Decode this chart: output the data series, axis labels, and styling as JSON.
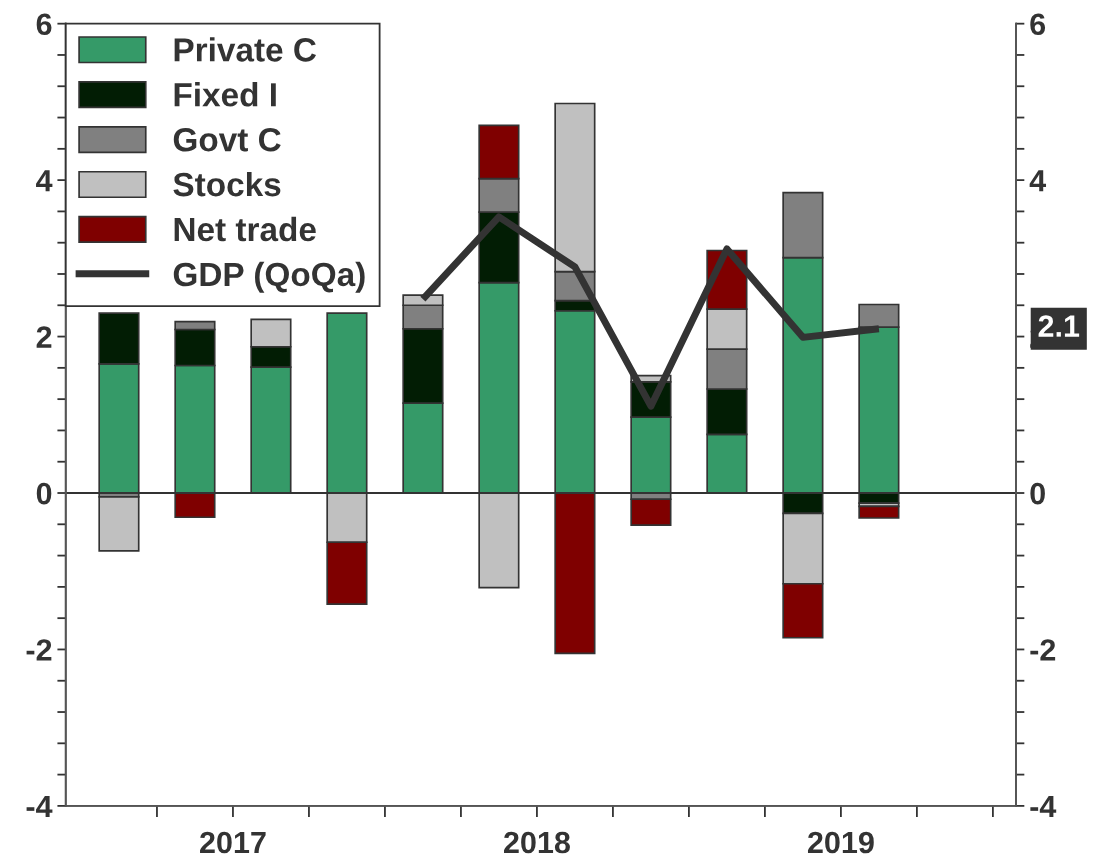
{
  "chart_data": {
    "type": "bar",
    "stacked": true,
    "x": [
      2017.125,
      2017.375,
      2017.625,
      2017.875,
      2018.125,
      2018.375,
      2018.625,
      2018.875,
      2019.125,
      2019.375,
      2019.625
    ],
    "series": [
      {
        "name": "Private C",
        "color": "#359a68",
        "values": [
          1.65,
          1.63,
          1.61,
          2.3,
          1.15,
          2.69,
          2.33,
          0.97,
          0.75,
          3.01,
          2.12
        ]
      },
      {
        "name": "Fixed I",
        "color": "#021d04",
        "values": [
          0.65,
          0.46,
          0.26,
          null,
          0.95,
          0.9,
          0.13,
          0.45,
          0.58,
          -0.26,
          -0.13
        ]
      },
      {
        "name": "Govt C",
        "color": "#808080",
        "values": [
          -0.05,
          0.1,
          null,
          null,
          0.3,
          0.43,
          0.37,
          -0.08,
          0.51,
          0.83,
          0.29
        ]
      },
      {
        "name": "Stocks",
        "color": "#c0c0c0",
        "values": [
          -0.69,
          null,
          0.35,
          -0.63,
          0.13,
          -1.21,
          2.15,
          0.08,
          0.51,
          -0.9,
          -0.04
        ]
      },
      {
        "name": "Net trade",
        "color": "#7f0000",
        "values": [
          null,
          -0.31,
          null,
          -0.79,
          null,
          0.68,
          -2.05,
          -0.33,
          0.75,
          -0.69,
          -0.15
        ]
      },
      {
        "name": "GDP (QoQa)",
        "type": "line",
        "color": "#333333",
        "values": [
          null,
          null,
          null,
          null,
          2.48,
          3.53,
          2.89,
          1.11,
          3.12,
          1.99,
          2.1
        ]
      }
    ],
    "xlim": [
      2016.95,
      2020.076
    ],
    "xticks": [
      {
        "value": 2017.25,
        "label": null
      },
      {
        "value": 2017.5,
        "label": "2017"
      },
      {
        "value": 2017.75,
        "label": null
      },
      {
        "value": 2018,
        "label": null
      },
      {
        "value": 2018.25,
        "label": null
      },
      {
        "value": 2018.5,
        "label": "2018"
      },
      {
        "value": 2018.75,
        "label": null
      },
      {
        "value": 2019,
        "label": null
      },
      {
        "value": 2019.25,
        "label": null
      },
      {
        "value": 2019.5,
        "label": "2019"
      },
      {
        "value": 2019.75,
        "label": null
      },
      {
        "value": 2020,
        "label": null
      }
    ],
    "ylim": [
      -4,
      6
    ],
    "yticks": [
      -4,
      {
        "value": -3.6,
        "label": null
      },
      {
        "value": -3.2,
        "label": null
      },
      {
        "value": -2.8,
        "label": null
      },
      {
        "value": -2.4,
        "label": null
      },
      -2,
      {
        "value": -1.6,
        "label": null
      },
      {
        "value": -1.2,
        "label": null
      },
      {
        "value": -0.8,
        "label": null
      },
      {
        "value": -0.4,
        "label": null
      },
      0,
      {
        "value": 0.4,
        "label": null
      },
      {
        "value": 0.8,
        "label": null
      },
      {
        "value": 1.2,
        "label": null
      },
      {
        "value": 1.6,
        "label": null
      },
      2,
      {
        "value": 2.4,
        "label": null
      },
      {
        "value": 2.8,
        "label": null
      },
      {
        "value": 3.2,
        "label": null
      },
      {
        "value": 3.6,
        "label": null
      },
      4,
      {
        "value": 4.4,
        "label": null
      },
      {
        "value": 4.8,
        "label": null
      },
      {
        "value": 5.2,
        "label": null
      },
      {
        "value": 5.6,
        "label": null
      },
      6
    ],
    "y2lim": [
      -4,
      6
    ],
    "y2ticks": [
      -4,
      {
        "value": -3.6,
        "label": null
      },
      {
        "value": -3.2,
        "label": null
      },
      {
        "value": -2.8,
        "label": null
      },
      {
        "value": -2.4,
        "label": null
      },
      -2,
      {
        "value": -1.6,
        "label": null
      },
      {
        "value": -1.2,
        "label": null
      },
      {
        "value": -0.8,
        "label": null
      },
      {
        "value": -0.4,
        "label": null
      },
      0,
      {
        "value": 0.4,
        "label": null
      },
      {
        "value": 0.8,
        "label": null
      },
      {
        "value": 1.2,
        "label": null
      },
      {
        "value": 1.6,
        "label": null
      },
      2,
      {
        "value": 2.4,
        "label": null
      },
      {
        "value": 2.8,
        "label": null
      },
      {
        "value": 3.2,
        "label": null
      },
      {
        "value": 3.6,
        "label": null
      },
      4,
      {
        "value": 4.4,
        "label": null
      },
      {
        "value": 4.8,
        "label": null
      },
      {
        "value": 5.2,
        "label": null
      },
      {
        "value": 5.6,
        "label": null
      },
      6
    ],
    "ref_lines": [
      {
        "axis": "y",
        "value": 0,
        "color": "#333333"
      }
    ],
    "annotations": [
      "2.1"
    ],
    "legend": "top left",
    "grid": false
  }
}
